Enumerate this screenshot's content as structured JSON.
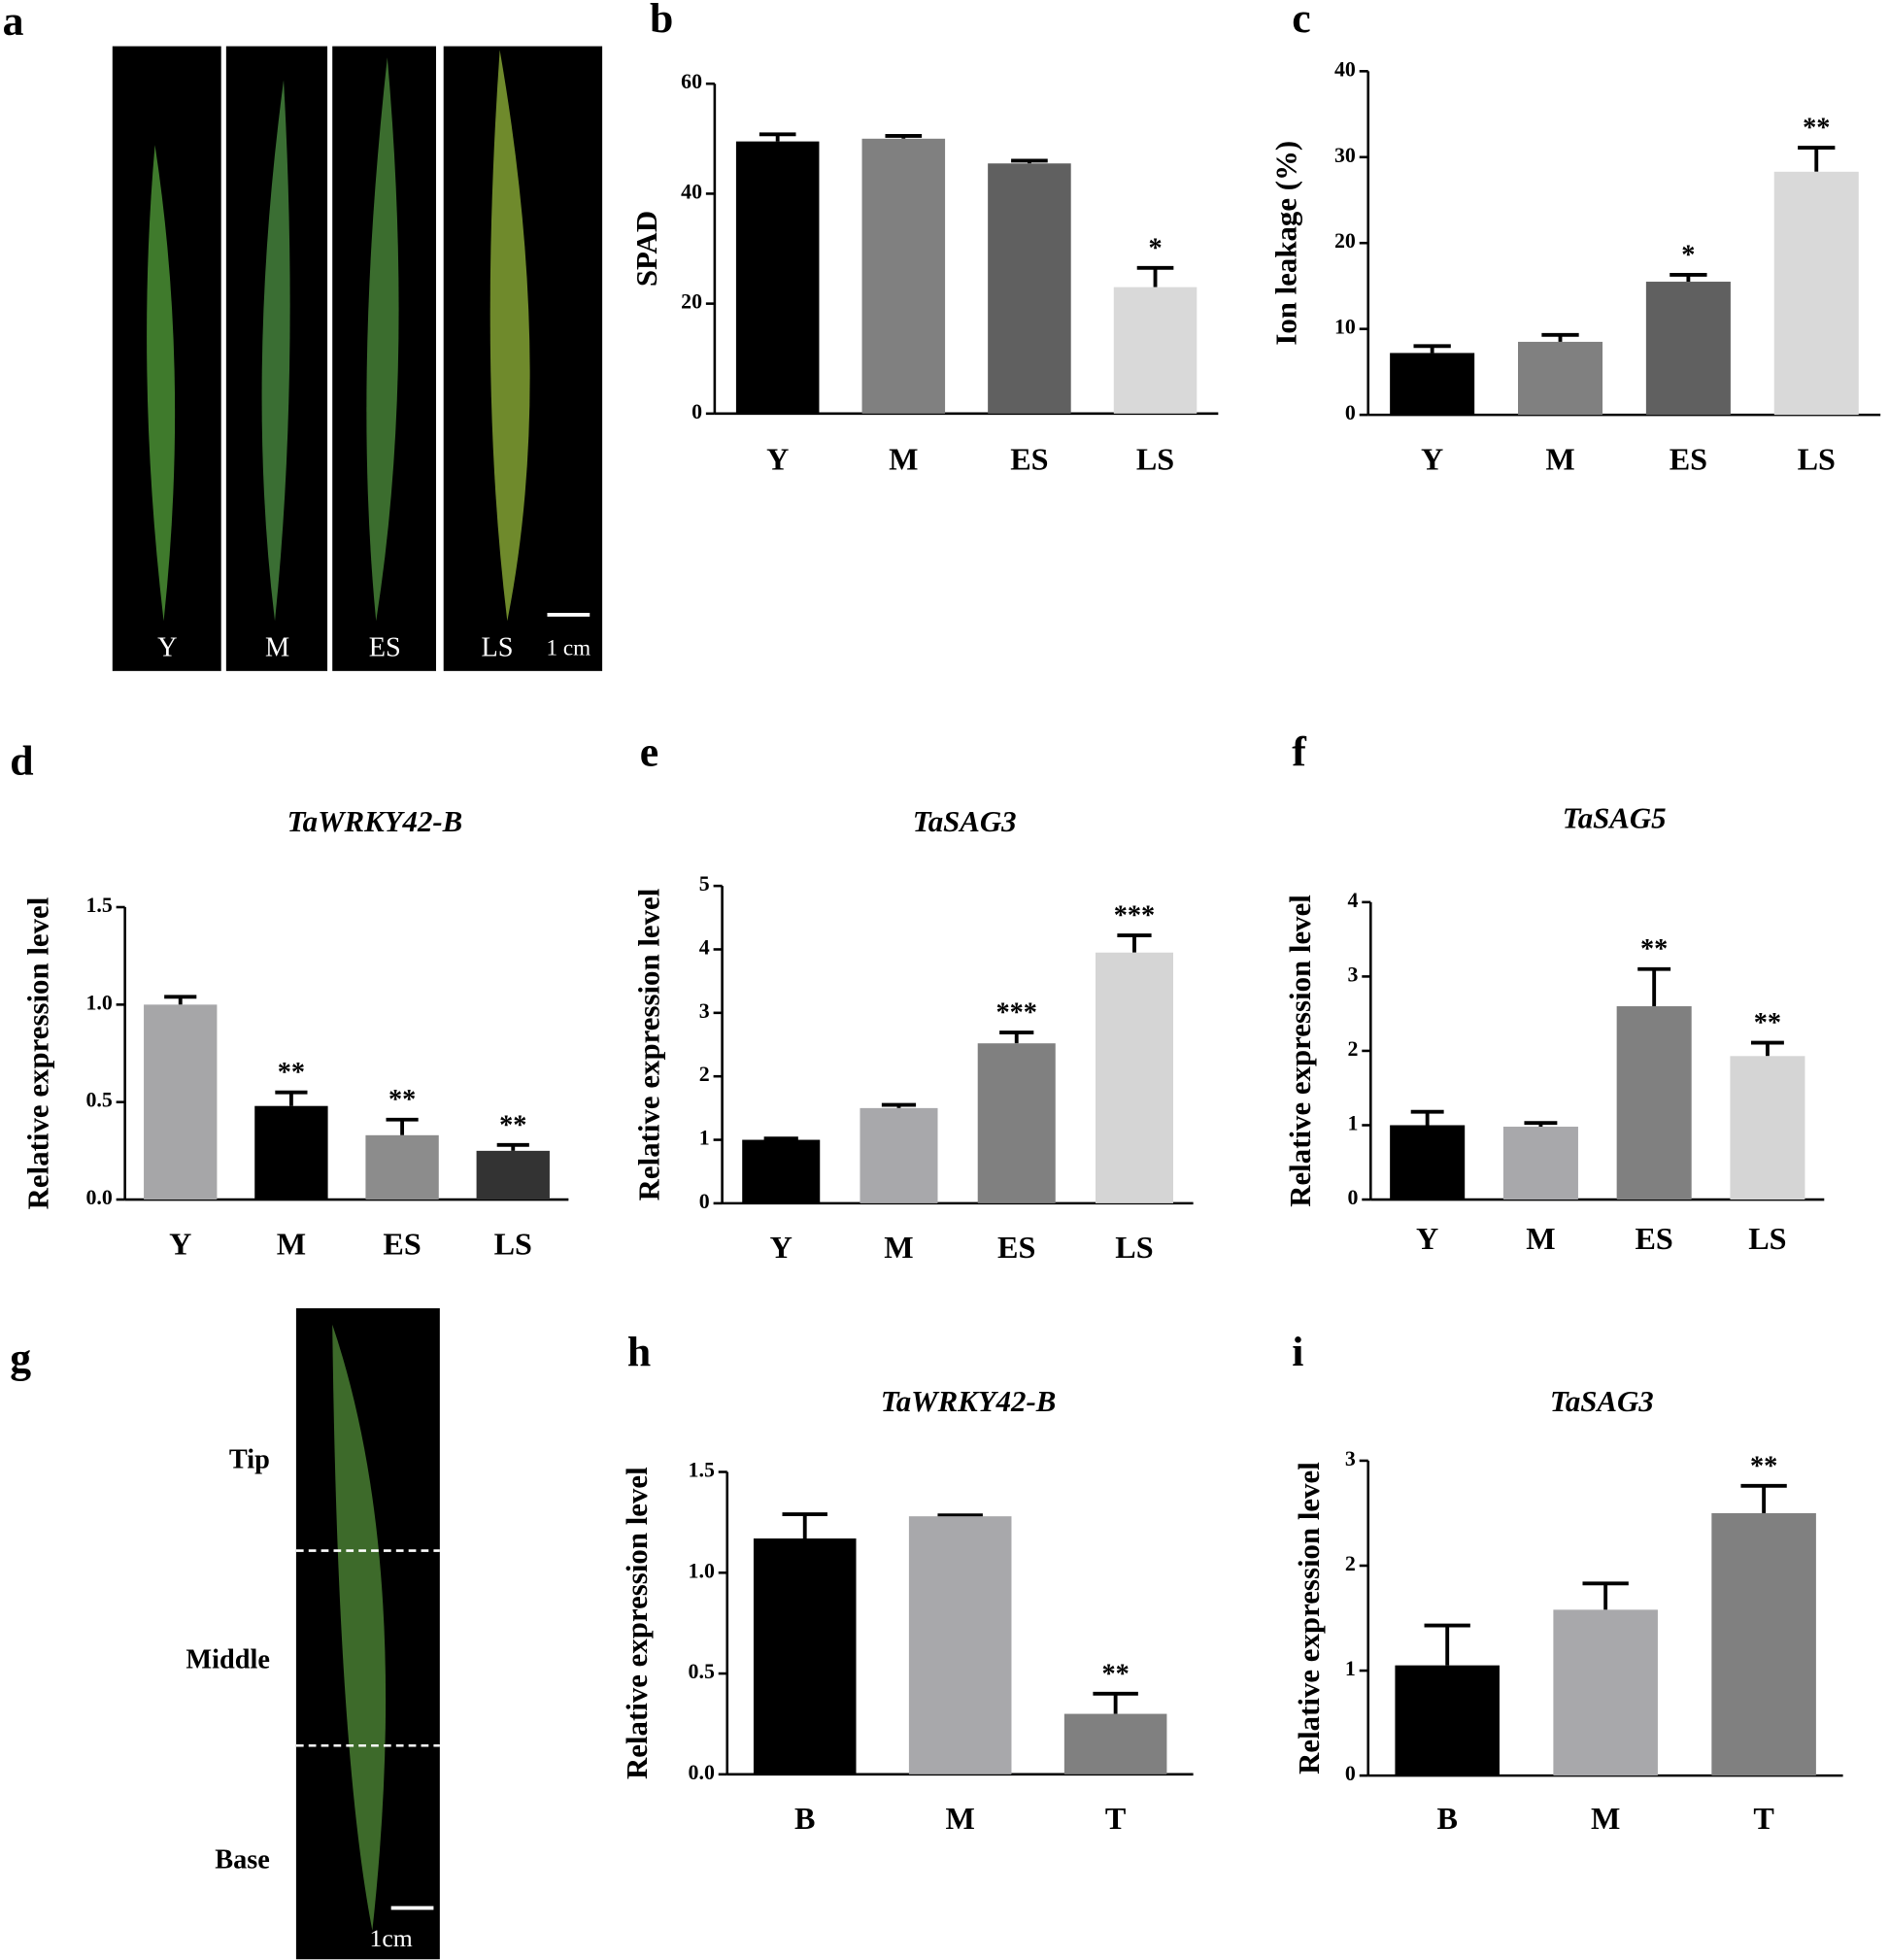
{
  "chart_data": [
    {
      "panel": "a",
      "type": "photo",
      "labels": [
        "Y",
        "M",
        "ES",
        "LS"
      ],
      "scale_label": "1 cm"
    },
    {
      "panel": "b",
      "type": "bar",
      "ylabel": "SPAD",
      "categories": [
        "Y",
        "M",
        "ES",
        "LS"
      ],
      "values": [
        49.5,
        50,
        45.5,
        23
      ],
      "errors": [
        1.3,
        0.5,
        0.5,
        3.5
      ],
      "annotations": [
        null,
        null,
        null,
        "*"
      ],
      "colors": [
        "#000000",
        "#808080",
        "#606060",
        "#d9d9d9"
      ],
      "ylim": [
        0,
        60
      ],
      "yticks": [
        0,
        20,
        40,
        60
      ]
    },
    {
      "panel": "c",
      "type": "bar",
      "ylabel": "Ion  leakage (%)",
      "categories": [
        "Y",
        "M",
        "ES",
        "LS"
      ],
      "values": [
        7.2,
        8.5,
        15.5,
        28.3
      ],
      "errors": [
        0.8,
        0.8,
        0.8,
        2.8
      ],
      "annotations": [
        null,
        null,
        "*",
        "**"
      ],
      "colors": [
        "#000000",
        "#808080",
        "#606060",
        "#d9d9d9"
      ],
      "ylim": [
        0,
        40
      ],
      "yticks": [
        0,
        10,
        20,
        30,
        40
      ]
    },
    {
      "panel": "d",
      "type": "bar",
      "title": "TaWRKY42-B",
      "ylabel": "Relative expression level",
      "categories": [
        "Y",
        "M",
        "ES",
        "LS"
      ],
      "values": [
        1.0,
        0.48,
        0.33,
        0.25
      ],
      "errors": [
        0.04,
        0.07,
        0.08,
        0.03
      ],
      "annotations": [
        null,
        "**",
        "**",
        "**"
      ],
      "colors": [
        "#a6a6a8",
        "#000000",
        "#8c8c8c",
        "#333333"
      ],
      "ylim": [
        0,
        1.5
      ],
      "yticks": [
        {
          "value": 0,
          "label": "0.0"
        },
        0.5,
        {
          "value": 1,
          "label": "1.0"
        },
        1.5
      ]
    },
    {
      "panel": "e",
      "type": "bar",
      "title": "TaSAG3",
      "ylabel": "Relative expression level",
      "categories": [
        "Y",
        "M",
        "ES",
        "LS"
      ],
      "values": [
        1.0,
        1.5,
        2.52,
        3.95
      ],
      "errors": [
        0.02,
        0.05,
        0.17,
        0.27
      ],
      "annotations": [
        null,
        null,
        "***",
        "***"
      ],
      "colors": [
        "#000000",
        "#a8a8ab",
        "#808080",
        "#d5d5d5"
      ],
      "ylim": [
        0,
        5
      ],
      "yticks": [
        0,
        1,
        2,
        3,
        4,
        5
      ]
    },
    {
      "panel": "f",
      "type": "bar",
      "title": "TaSAG5",
      "ylabel": "Relative expression level",
      "categories": [
        "Y",
        "M",
        "ES",
        "LS"
      ],
      "values": [
        1.0,
        0.98,
        2.6,
        1.93
      ],
      "errors": [
        0.18,
        0.05,
        0.5,
        0.18
      ],
      "annotations": [
        null,
        null,
        "**",
        "**"
      ],
      "colors": [
        "#000000",
        "#a8a8ab",
        "#808080",
        "#d5d5d5"
      ],
      "ylim": [
        0,
        4
      ],
      "yticks": [
        0,
        1,
        2,
        3,
        4
      ]
    },
    {
      "panel": "g",
      "type": "photo",
      "labels": [
        "Tip",
        "Middle",
        "Base"
      ],
      "scale_label": "1cm"
    },
    {
      "panel": "h",
      "type": "bar",
      "title": "TaWRKY42-B",
      "ylabel": "Relative expression level",
      "categories": [
        "B",
        "M",
        "T"
      ],
      "values": [
        1.17,
        1.28,
        0.3
      ],
      "errors": [
        0.12,
        0.005,
        0.1
      ],
      "annotations": [
        null,
        null,
        "**"
      ],
      "colors": [
        "#000000",
        "#a8a8ab",
        "#808080"
      ],
      "ylim": [
        0,
        1.5
      ],
      "yticks": [
        {
          "value": 0,
          "label": "0.0"
        },
        0.5,
        {
          "value": 1,
          "label": "1.0"
        },
        1.5
      ]
    },
    {
      "panel": "i",
      "type": "bar",
      "title": "TaSAG3",
      "ylabel": "Relative expression level",
      "categories": [
        "B",
        "M",
        "T"
      ],
      "values": [
        1.05,
        1.58,
        2.5
      ],
      "errors": [
        0.38,
        0.25,
        0.26
      ],
      "annotations": [
        null,
        null,
        "**"
      ],
      "colors": [
        "#000000",
        "#a8a8ab",
        "#808080"
      ],
      "ylim": [
        0,
        3
      ],
      "yticks": [
        0,
        1,
        2,
        3
      ]
    }
  ]
}
